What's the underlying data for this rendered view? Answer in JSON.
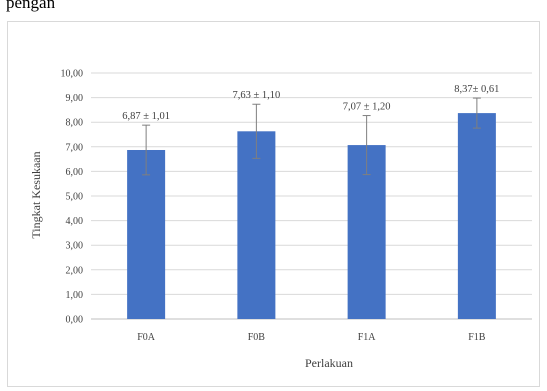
{
  "page": {
    "top_text": "pengan"
  },
  "chart_data": {
    "type": "bar",
    "categories": [
      "F0A",
      "F0B",
      "F1A",
      "F1B"
    ],
    "values": [
      6.87,
      7.63,
      7.07,
      8.37
    ],
    "errors": [
      1.01,
      1.1,
      1.2,
      0.61
    ],
    "data_labels": [
      "6,87 ± 1,01",
      "7,63 ± 1,10",
      "7,07 ± 1,20",
      "8,37± 0,61"
    ],
    "ylim": [
      0,
      10
    ],
    "y_ticks": [
      "0,00",
      "1,00",
      "2,00",
      "3,00",
      "4,00",
      "5,00",
      "6,00",
      "7,00",
      "8,00",
      "9,00",
      "10,00"
    ],
    "xlabel": "Perlakuan",
    "ylabel": "Tingkat Kesukaan",
    "grid": true,
    "bar_color": "#4472c4",
    "grid_color": "#d9d9d9",
    "error_bar_color": "#7f7f7f"
  }
}
